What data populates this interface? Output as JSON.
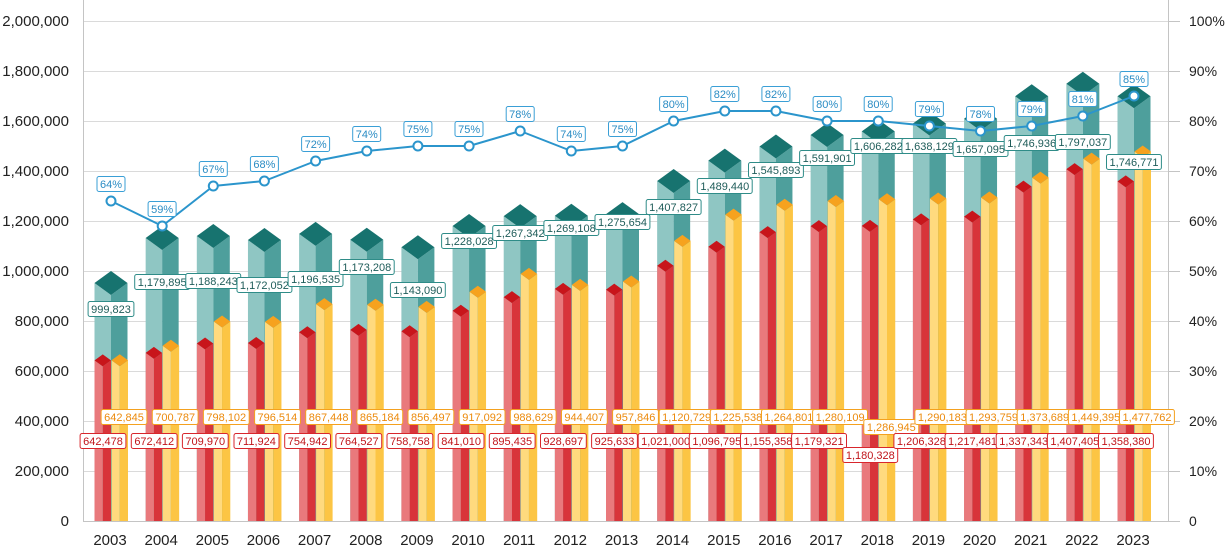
{
  "chart_data": {
    "type": "bar",
    "categories": [
      "2003",
      "2004",
      "2005",
      "2006",
      "2007",
      "2008",
      "2009",
      "2010",
      "2011",
      "2012",
      "2013",
      "2014",
      "2015",
      "2016",
      "2017",
      "2018",
      "2019",
      "2020",
      "2021",
      "2022",
      "2023"
    ],
    "bar_series": [
      {
        "colors": {
          "top": "#17736f",
          "light": "#8fc6c3",
          "dark": "#4e9f9c",
          "label_border": "#2f8c88",
          "label_text": "#1e5c59"
        },
        "values": [
          999823,
          1179895,
          1188243,
          1172052,
          1196535,
          1173208,
          1143090,
          1228028,
          1267342,
          1269108,
          1275654,
          1407827,
          1489440,
          1545893,
          1591901,
          1606282,
          1638129,
          1657095,
          1746936,
          1797037,
          1746771
        ],
        "labels": [
          "999,823",
          "1,179,895",
          "1,188,243",
          "1,172,052",
          "1,196,535",
          "1,173,208",
          "1,143,090",
          "1,228,028",
          "1,267,342",
          "1,269,108",
          "1,275,654",
          "1,407,827",
          "1,489,440",
          "1,545,893",
          "1,591,901",
          "1,606,282",
          "1,638,129",
          "1,657,095",
          "1,746,936",
          "1,797,037",
          "1,746,771"
        ]
      },
      {
        "colors": {
          "top": "#c8151b",
          "light": "#e9797c",
          "dark": "#d8343a",
          "label_border": "#d8262c",
          "label_text": "#c0141a"
        },
        "values": [
          642478,
          672412,
          709970,
          711924,
          754942,
          764527,
          758758,
          841010,
          895435,
          928697,
          925633,
          1021000,
          1096795,
          1155358,
          1179321,
          1180328,
          1206328,
          1217481,
          1337343,
          1407405,
          1358380
        ],
        "labels": [
          "642,478",
          "672,412",
          "709,970",
          "711,924",
          "754,942",
          "764,527",
          "758,758",
          "841,010",
          "895,435",
          "928,697",
          "925,633",
          "1,021,000",
          "1,096,795",
          "1,155,358",
          "1,179,321",
          "1,180,328",
          "1,206,328",
          "1,217,481",
          "1,337,343",
          "1,407,405",
          "1,358,380"
        ]
      },
      {
        "colors": {
          "top": "#f6a21e",
          "light": "#ffda7e",
          "dark": "#fcc544",
          "label_border": "#f4a11f",
          "label_text": "#ec8a0c"
        },
        "values": [
          642845,
          700787,
          798102,
          796514,
          867448,
          865184,
          856497,
          917092,
          988629,
          944407,
          957846,
          1120729,
          1225538,
          1264801,
          1280109,
          1286945,
          1290183,
          1293759,
          1373689,
          1449395,
          1477762
        ],
        "labels": [
          "642,845",
          "700,787",
          "798,102",
          "796,514",
          "867,448",
          "865,184",
          "856,497",
          "917,092",
          "988,629",
          "944,407",
          "957,846",
          "1,120,729",
          "1,225,538",
          "1,264,801",
          "1,280,109",
          "1,286,945",
          "1,290,183",
          "1,293,759",
          "1,373,689",
          "1,449,395",
          "1,477,762"
        ]
      }
    ],
    "line_series": {
      "colors": {
        "line": "#2b95cc",
        "marker_fill": "#ffffff",
        "label_border": "#3a9fd6",
        "label_text": "#2a8cc4"
      },
      "values": [
        64,
        59,
        67,
        68,
        72,
        74,
        75,
        75,
        78,
        74,
        75,
        80,
        82,
        82,
        80,
        80,
        79,
        78,
        79,
        81,
        85
      ],
      "labels": [
        "64%",
        "59%",
        "67%",
        "68%",
        "72%",
        "74%",
        "75%",
        "75%",
        "78%",
        "74%",
        "75%",
        "80%",
        "82%",
        "82%",
        "80%",
        "80%",
        "79%",
        "78%",
        "79%",
        "81%",
        "85%"
      ]
    },
    "y_left": {
      "range": [
        0,
        2000000
      ],
      "ticks": [
        0,
        200000,
        400000,
        600000,
        800000,
        1000000,
        1200000,
        1400000,
        1600000,
        1800000,
        2000000
      ],
      "tick_labels": [
        "0",
        "200,000",
        "400,000",
        "600,000",
        "800,000",
        "1,000,000",
        "1,200,000",
        "1,400,000",
        "1,600,000",
        "1,800,000",
        "2,000,000"
      ]
    },
    "y_right": {
      "range": [
        0,
        100
      ],
      "ticks": [
        0,
        10,
        20,
        30,
        40,
        50,
        60,
        70,
        80,
        90,
        100
      ],
      "tick_labels": [
        "0",
        "10%",
        "20%",
        "30%",
        "40%",
        "50%",
        "60%",
        "70%",
        "80%",
        "90%",
        "100%"
      ]
    },
    "grid": true
  }
}
